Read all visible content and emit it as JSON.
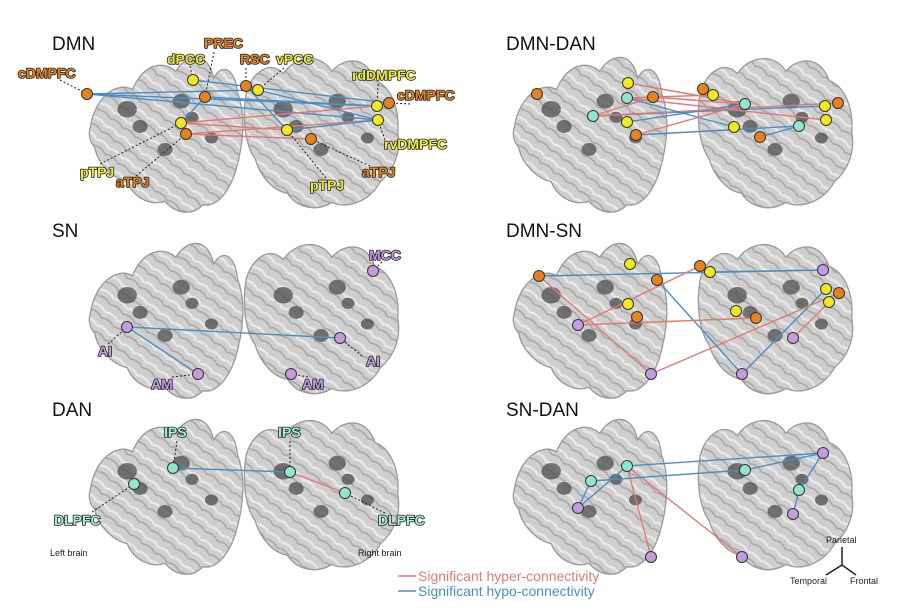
{
  "colors": {
    "dmn_orange": "#e8821e",
    "dmn_yellow": "#f2ea1c",
    "sn": "#c79be0",
    "dan": "#8fe8cc",
    "hyper": "#e07a72",
    "hypo": "#4a8fc4",
    "brain_fill": "#c9c9c9",
    "brain_edge": "#9a9a9a",
    "label_orange": "#e8821e",
    "label_yellow": "#ecec3a",
    "label_sn": "#c39ae6",
    "label_dan": "#a6f0d6"
  },
  "panels": {
    "dmn": {
      "title": "DMN"
    },
    "dmn_dan": {
      "title": "DMN-DAN"
    },
    "sn": {
      "title": "SN"
    },
    "dmn_sn": {
      "title": "DMN-SN"
    },
    "dan": {
      "title": "DAN"
    },
    "sn_dan": {
      "title": "SN-DAN"
    }
  },
  "labels": {
    "dmn": {
      "cdmpfc_l": "cDMPFC",
      "dpcc": "dPCC",
      "prec": "PREC",
      "rsc": "RSC",
      "vpcc": "vPCC",
      "rddmpfc": "rdDMPFC",
      "cdmpfc_r": "cDMPFC",
      "rvdmpfc": "rvDMPFC",
      "ptpj_l": "pTPJ",
      "atpj_l": "aTPJ",
      "ptpj_r": "pTPJ",
      "atpj_r": "aTPJ"
    },
    "sn": {
      "mcc": "MCC",
      "ai_l": "AI",
      "ai_r": "AI",
      "am_l": "AM",
      "am_r": "AM"
    },
    "dan": {
      "ips_l": "IPS",
      "ips_r": "IPS",
      "dlpfc_l": "DLPFC",
      "dlpfc_r": "DLPFC"
    }
  },
  "captions": {
    "left_brain": "Left brain",
    "right_brain": "Right brain"
  },
  "legend": {
    "hyper": "Significant hyper-connectivity",
    "hypo": "Significant hypo-connectivity"
  },
  "orientation": {
    "top": "Parietal",
    "left": "Temporal",
    "right": "Frontal"
  }
}
